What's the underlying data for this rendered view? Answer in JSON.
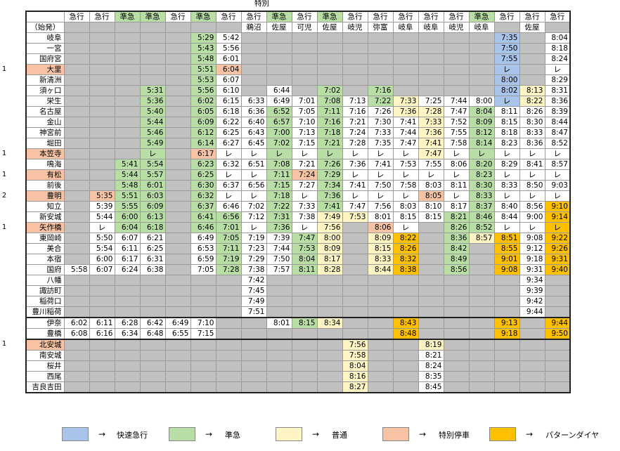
{
  "note_top": "特別",
  "columns": [
    {
      "type": "急行",
      "origin": ""
    },
    {
      "type": "急行",
      "origin": ""
    },
    {
      "type": "準急",
      "origin": "",
      "type_color": "green"
    },
    {
      "type": "準急",
      "origin": "",
      "type_color": "green"
    },
    {
      "type": "急行",
      "origin": ""
    },
    {
      "type": "準急",
      "origin": "",
      "type_color": "green"
    },
    {
      "type": "急行",
      "origin": ""
    },
    {
      "type": "急行",
      "origin": "鵜沼"
    },
    {
      "type": "準急",
      "origin": "佐屋",
      "type_color": "green"
    },
    {
      "type": "急行",
      "origin": "可児"
    },
    {
      "type": "準急",
      "origin": "佐屋",
      "type_color": "green"
    },
    {
      "type": "急行",
      "origin": "岐児"
    },
    {
      "type": "急行",
      "origin": "弥富"
    },
    {
      "type": "急行",
      "origin": "岐阜"
    },
    {
      "type": "急行",
      "origin": "岐阜"
    },
    {
      "type": "急行",
      "origin": "岐児"
    },
    {
      "type": "準急",
      "origin": "岐阜",
      "type_color": "green"
    },
    {
      "type": "急行",
      "origin": ""
    },
    {
      "type": "急行",
      "origin": "佐屋"
    },
    {
      "type": "急行",
      "origin": ""
    }
  ],
  "origin_row_label": "（始発）",
  "rows": [
    {
      "name": "岐阜",
      "cells": [
        "g",
        "g",
        "g",
        "g",
        "g",
        "5:29|green",
        "5:42",
        "g",
        "g",
        "g",
        "g",
        "g",
        "g",
        "g",
        "g",
        "g",
        "g",
        "7:35|blue",
        "g",
        "8:04"
      ]
    },
    {
      "name": "一宮",
      "cells": [
        "g",
        "g",
        "g",
        "g",
        "g",
        "5:43|green",
        "5:56",
        "g",
        "g",
        "g",
        "g",
        "g",
        "g",
        "g",
        "g",
        "g",
        "g",
        "7:50|blue",
        "g",
        "8:18"
      ]
    },
    {
      "name": "国府宮",
      "cells": [
        "g",
        "g",
        "g",
        "g",
        "g",
        "5:48|green",
        "6:01",
        "g",
        "g",
        "g",
        "g",
        "g",
        "g",
        "g",
        "g",
        "g",
        "g",
        "7:55|blue",
        "g",
        "8:24"
      ]
    },
    {
      "name": "大里",
      "group": "1",
      "name_color": "salmon",
      "cells": [
        "g",
        "g",
        "g",
        "g",
        "g",
        "5:51|green",
        "6:04|salmon",
        "g",
        "g",
        "g",
        "g",
        "g",
        "g",
        "g",
        "g",
        "g",
        "g",
        "レ|blue",
        "g",
        "レ"
      ]
    },
    {
      "name": "新清洲",
      "cells": [
        "g",
        "g",
        "g",
        "g",
        "g",
        "5:53|green",
        "6:07",
        "g",
        "g",
        "g",
        "g",
        "g",
        "g",
        "g",
        "g",
        "g",
        "g",
        "8:00|blue",
        "g",
        "8:29"
      ]
    },
    {
      "name": "須ヶ口",
      "cells": [
        "g",
        "g",
        "g",
        "5:31|green",
        "g",
        "5:56|green",
        "6:10",
        "g",
        "6:44",
        "g",
        "7:02|green",
        "g",
        "7:16|green",
        "g",
        "g",
        "g",
        "g",
        "8:02|blue",
        "8:13|yellow",
        "8:31"
      ]
    },
    {
      "name": "栄生",
      "cells": [
        "g",
        "g",
        "g",
        "5:36|green",
        "g",
        "6:02|green",
        "6:15",
        "6:33",
        "6:49",
        "7:01",
        "7:08|green",
        "7:13",
        "7:22|green",
        "7:33|yellow",
        "7:25",
        "7:44",
        "8:00",
        "レ|blue",
        "8:22|yellow",
        "8:36"
      ]
    },
    {
      "name": "名古屋",
      "cells": [
        "g",
        "g",
        "g",
        "5:40|green",
        "g",
        "6:05|green",
        "6:18",
        "6:36",
        "6:52|green",
        "7:05",
        "7:11|green",
        "7:16",
        "7:26",
        "7:36|yellow",
        "7:28|yellow",
        "7:47",
        "8:04|green",
        "8:11",
        "8:26",
        "8:39"
      ]
    },
    {
      "name": "金山",
      "cells": [
        "g",
        "g",
        "g",
        "5:44|green",
        "g",
        "6:09|green",
        "6:22",
        "6:40",
        "6:57|green",
        "7:10",
        "7:16|green",
        "7:21",
        "7:30",
        "7:41",
        "7:33|yellow",
        "7:52",
        "8:09|green",
        "8:15",
        "8:30",
        "8:44"
      ]
    },
    {
      "name": "神宮前",
      "cells": [
        "g",
        "g",
        "g",
        "5:46|green",
        "g",
        "6:12|green",
        "6:25",
        "6:43",
        "7:00|green",
        "7:13",
        "7:18|green",
        "7:24",
        "7:33",
        "7:44",
        "7:36|yellow",
        "7:55",
        "8:12|green",
        "8:18",
        "8:33",
        "8:47"
      ]
    },
    {
      "name": "堀田",
      "cells": [
        "g",
        "g",
        "g",
        "5:49|green",
        "g",
        "6:14|green",
        "6:27",
        "6:45",
        "7:02|green",
        "7:15",
        "7:21|green",
        "7:28",
        "7:35",
        "7:47",
        "7:41|yellow",
        "7:58",
        "8:14|green",
        "8:23",
        "8:36",
        "8:52"
      ]
    },
    {
      "name": "本笠寺",
      "group": "1",
      "name_color": "salmon",
      "cells": [
        "g",
        "g",
        "g",
        "レ|green",
        "g",
        "6:17|salmon",
        "レ",
        "レ",
        "レ|green",
        "レ",
        "レ|green",
        "レ",
        "レ",
        "レ",
        "7:47|yellow",
        "レ",
        "レ|green",
        "レ",
        "レ",
        "レ"
      ]
    },
    {
      "name": "鳴海",
      "cells": [
        "g",
        "g",
        "5:41|green",
        "5:54|green",
        "g",
        "6:23|green",
        "6:32",
        "6:51",
        "7:08|green",
        "7:21",
        "7:26|green",
        "7:36",
        "7:41",
        "7:53",
        "7:55",
        "8:06",
        "8:20|green",
        "8:29",
        "8:41",
        "8:57"
      ]
    },
    {
      "name": "有松",
      "group": "1",
      "name_color": "salmon",
      "cells": [
        "g",
        "g",
        "5:44|green",
        "5:57|green",
        "g",
        "6:25|green",
        "レ",
        "レ",
        "7:11|green",
        "7:24|salmon",
        "7:29|green",
        "レ",
        "レ",
        "レ",
        "レ",
        "レ",
        "8:23|green",
        "レ",
        "レ",
        "レ"
      ]
    },
    {
      "name": "前後",
      "cells": [
        "g",
        "g",
        "5:48|green",
        "6:01|green",
        "g",
        "6:30|green",
        "6:37",
        "6:56",
        "7:15|green",
        "7:27",
        "7:34|green",
        "7:41",
        "7:50",
        "7:58",
        "8:03",
        "8:11",
        "8:30|green",
        "8:33",
        "8:50",
        "9:03"
      ]
    },
    {
      "name": "豊明",
      "group": "2",
      "name_color": "salmon",
      "cells": [
        "g",
        "5:35|salmon",
        "5:51|green",
        "6:03|green",
        "g",
        "6:32|green",
        "レ",
        "レ",
        "7:18|green",
        "レ",
        "7:36|green",
        "レ",
        "レ",
        "レ",
        "8:05|salmon",
        "レ",
        "8:33|green",
        "レ",
        "レ",
        "レ"
      ]
    },
    {
      "name": "知立",
      "cells": [
        "g",
        "5:39",
        "5:55|green",
        "6:09|green",
        "g",
        "6:37|green",
        "6:46",
        "7:02",
        "7:22|green",
        "7:33",
        "7:41|green",
        "7:47",
        "7:56",
        "8:03",
        "8:10",
        "8:17",
        "8:37|green",
        "8:40",
        "8:56",
        "9:10|orange"
      ]
    },
    {
      "name": "新安城",
      "cells": [
        "g",
        "5:44",
        "6:00|green",
        "6:13|green",
        "g",
        "6:41|green",
        "6:56|green",
        "7:12",
        "7:31|green",
        "7:38",
        "7:49|yellow",
        "7:53|yellow",
        "8:01",
        "8:15",
        "8:15",
        "8:21|green",
        "8:46|green",
        "8:44",
        "9:00",
        "9:14|orange"
      ]
    },
    {
      "name": "矢作橋",
      "group": "1",
      "name_color": "salmon",
      "cells": [
        "g",
        "レ",
        "6:04|green",
        "6:18|green",
        "g",
        "6:46|green",
        "7:01|green",
        "レ",
        "7:36|green",
        "レ",
        "7:56|yellow",
        "g",
        "8:06|salmon",
        "レ",
        "g",
        "8:26|green",
        "8:52|green",
        "レ",
        "レ",
        "レ|orange"
      ]
    },
    {
      "name": "東岡崎",
      "cells": [
        "g",
        "5:50",
        "6:07",
        "6:21",
        "g",
        "6:49",
        "7:05|green",
        "7:19",
        "7:39",
        "7:47|green",
        "8:00|yellow",
        "g",
        "8:09|yellow",
        "8:22|orange",
        "g",
        "8:36|green",
        "8:57|yellow",
        "8:51|orange",
        "9:08",
        "9:22|orange"
      ]
    },
    {
      "name": "美合",
      "cells": [
        "g",
        "5:54",
        "6:11",
        "6:25",
        "g",
        "6:53",
        "7:11|green",
        "7:23",
        "7:44",
        "7:53|green",
        "8:09|yellow",
        "g",
        "8:15|yellow",
        "8:26|orange",
        "g",
        "8:42|green",
        "g",
        "8:55|orange",
        "9:12",
        "9:26|orange"
      ]
    },
    {
      "name": "本宿",
      "cells": [
        "g",
        "6:00",
        "6:17",
        "6:31",
        "g",
        "6:59",
        "7:19|green",
        "7:29",
        "7:50",
        "8:04|green",
        "8:17|yellow",
        "g",
        "8:33|yellow",
        "8:32|orange",
        "g",
        "8:49|green",
        "g",
        "9:01|orange",
        "9:18",
        "9:31|orange"
      ]
    },
    {
      "name": "国府",
      "cells": [
        "5:58",
        "6:07",
        "6:24",
        "6:38",
        "g",
        "7:05",
        "7:28|green",
        "7:38",
        "7:57",
        "8:11|green",
        "8:28|yellow",
        "g",
        "8:44|yellow",
        "8:38|orange",
        "g",
        "8:56|green",
        "g",
        "9:08|orange",
        "9:31",
        "9:40|orange"
      ]
    },
    {
      "name": "八幡",
      "cells": [
        "g",
        "g",
        "g",
        "g",
        "g",
        "g",
        "g",
        "7:42",
        "g",
        "g",
        "g",
        "g",
        "g",
        "g",
        "g",
        "g",
        "g",
        "g",
        "9:34",
        "g"
      ]
    },
    {
      "name": "諏訪町",
      "cells": [
        "g",
        "g",
        "g",
        "g",
        "g",
        "g",
        "g",
        "7:45",
        "g",
        "g",
        "g",
        "g",
        "g",
        "g",
        "g",
        "g",
        "g",
        "g",
        "9:39",
        "g"
      ]
    },
    {
      "name": "稲荷口",
      "cells": [
        "g",
        "g",
        "g",
        "g",
        "g",
        "g",
        "g",
        "7:49",
        "g",
        "g",
        "g",
        "g",
        "g",
        "g",
        "g",
        "g",
        "g",
        "g",
        "9:42",
        "g"
      ]
    },
    {
      "name": "豊川稲荷",
      "cells": [
        "g",
        "g",
        "g",
        "g",
        "g",
        "g",
        "g",
        "7:51",
        "g",
        "g",
        "g",
        "g",
        "g",
        "g",
        "g",
        "g",
        "g",
        "g",
        "9:44",
        "g"
      ]
    },
    {
      "name": "伊奈",
      "thick": true,
      "cells": [
        "6:02",
        "6:11",
        "6:28",
        "6:42",
        "6:49",
        "7:10",
        "g",
        "g",
        "8:01",
        "8:15|green",
        "8:34|yellow",
        "g",
        "g",
        "8:43|orange",
        "g",
        "g",
        "g",
        "9:13|orange",
        "g",
        "9:44|orange"
      ]
    },
    {
      "name": "豊橋",
      "cells": [
        "6:08",
        "6:16",
        "6:34",
        "6:48",
        "6:55",
        "7:15",
        "g",
        "g",
        "g",
        "g",
        "g",
        "g",
        "g",
        "8:48|orange",
        "g",
        "g",
        "g",
        "9:18|orange",
        "g",
        "9:50|orange"
      ]
    },
    {
      "name": "北安城",
      "group": "1",
      "name_color": "salmon",
      "thick": true,
      "cells": [
        "g",
        "g",
        "g",
        "g",
        "g",
        "g",
        "g",
        "g",
        "g",
        "g",
        "g",
        "7:56|yellow",
        "g",
        "g",
        "8:19|yellow",
        "g",
        "g",
        "g",
        "g",
        "g"
      ]
    },
    {
      "name": "南安城",
      "cells": [
        "g",
        "g",
        "g",
        "g",
        "g",
        "g",
        "g",
        "g",
        "g",
        "g",
        "g",
        "7:58|yellow",
        "g",
        "g",
        "8:21",
        "g",
        "g",
        "g",
        "g",
        "g"
      ]
    },
    {
      "name": "桜井",
      "cells": [
        "g",
        "g",
        "g",
        "g",
        "g",
        "g",
        "g",
        "g",
        "g",
        "g",
        "g",
        "8:04|yellow",
        "g",
        "g",
        "8:24",
        "g",
        "g",
        "g",
        "g",
        "g"
      ]
    },
    {
      "name": "西尾",
      "cells": [
        "g",
        "g",
        "g",
        "g",
        "g",
        "g",
        "g",
        "g",
        "g",
        "g",
        "g",
        "8:16|yellow",
        "g",
        "g",
        "8:35",
        "g",
        "g",
        "g",
        "g",
        "g"
      ]
    },
    {
      "name": "吉良吉田",
      "cells": [
        "g",
        "g",
        "g",
        "g",
        "g",
        "g",
        "g",
        "g",
        "g",
        "g",
        "g",
        "8:27|yellow",
        "g",
        "g",
        "8:45",
        "g",
        "g",
        "g",
        "g",
        "g"
      ]
    }
  ],
  "legend": [
    {
      "color": "#a9c4ea",
      "arrow": "→",
      "label": "快速急行"
    },
    {
      "color": "#b8dea5",
      "arrow": "→",
      "label": "準急"
    },
    {
      "color": "#fff4c4",
      "arrow": "→",
      "label": "普通"
    },
    {
      "color": "#f7c3a4",
      "arrow": "→",
      "label": "特別停車"
    },
    {
      "color": "#ffc000",
      "arrow": "→",
      "label": "パターンダイヤ"
    }
  ]
}
